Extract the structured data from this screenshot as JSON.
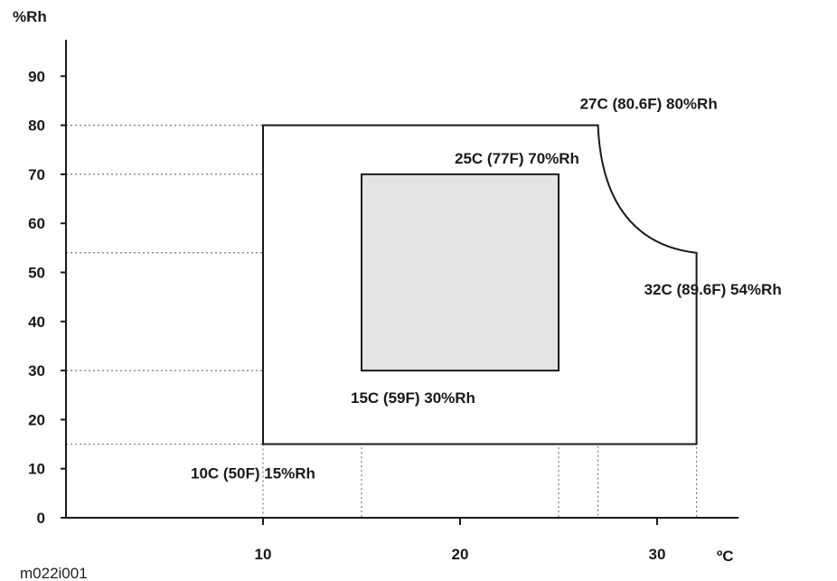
{
  "chart_data": {
    "type": "area",
    "ylabel": "%Rh",
    "xlabel": "ºC",
    "figure_id": "m022i001",
    "x_axis": {
      "range": [
        0,
        34
      ],
      "ticks": [
        10,
        20,
        30
      ]
    },
    "y_axis": {
      "range": [
        0,
        100
      ],
      "ticks": [
        0,
        10,
        20,
        30,
        40,
        50,
        60,
        70,
        80,
        90
      ]
    },
    "grid": "dotted guides to key points",
    "regions": [
      {
        "role": "outer",
        "fill": "#ffffff",
        "points": [
          [
            10,
            15
          ],
          [
            10,
            80
          ],
          [
            27,
            80
          ],
          [
            32,
            54
          ],
          [
            32,
            15
          ]
        ]
      },
      {
        "role": "inner",
        "fill": "#e4e4e4",
        "points": [
          [
            15,
            30
          ],
          [
            15,
            70
          ],
          [
            25,
            70
          ],
          [
            25,
            30
          ]
        ]
      }
    ],
    "annotations": [
      {
        "id": "p1",
        "x": 27,
        "y": 80,
        "text": "27C (80.6F) 80%Rh"
      },
      {
        "id": "p2",
        "x": 25,
        "y": 70,
        "text": "25C (77F) 70%Rh"
      },
      {
        "id": "p3",
        "x": 32,
        "y": 54,
        "text": "32C (89.6F) 54%Rh"
      },
      {
        "id": "p4",
        "x": 15,
        "y": 30,
        "text": "15C (59F) 30%Rh"
      },
      {
        "id": "p5",
        "x": 10,
        "y": 15,
        "text": "10C (50F) 15%Rh"
      }
    ]
  }
}
